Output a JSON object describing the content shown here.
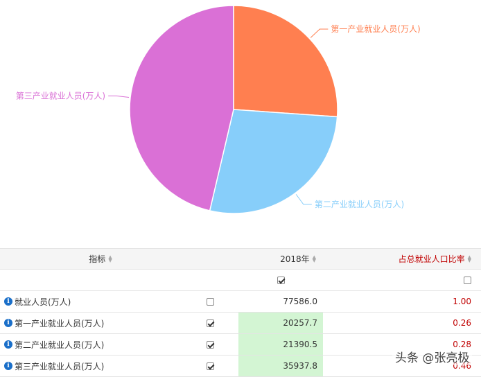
{
  "chart_data": {
    "type": "pie",
    "labels": [
      "第一产业就业人员(万人)",
      "第二产业就业人员(万人)",
      "第三产业就业人员(万人)"
    ],
    "values": [
      20257.7,
      21390.5,
      35937.8
    ],
    "colors": [
      "#FF7F50",
      "#87CEFA",
      "#DA70D6"
    ]
  },
  "table": {
    "headers": {
      "indicator": "指标",
      "year": "2018年",
      "ratio": "占总就业人口比率"
    },
    "rows": [
      {
        "name": "就业人员(万人)",
        "checked": false,
        "value": "77586.0",
        "ratio": "1.00",
        "highlight": false
      },
      {
        "name": "第一产业就业人员(万人)",
        "checked": true,
        "value": "20257.7",
        "ratio": "0.26",
        "highlight": true
      },
      {
        "name": "第二产业就业人员(万人)",
        "checked": true,
        "value": "21390.5",
        "ratio": "0.28",
        "highlight": true
      },
      {
        "name": "第三产业就业人员(万人)",
        "checked": true,
        "value": "35937.8",
        "ratio": "0.46",
        "highlight": true
      }
    ]
  },
  "watermark": "头条 @张亮极",
  "icons": {
    "info": "info-icon",
    "sort": "sort-arrows-icon",
    "checkbox": "checkbox-icon"
  }
}
